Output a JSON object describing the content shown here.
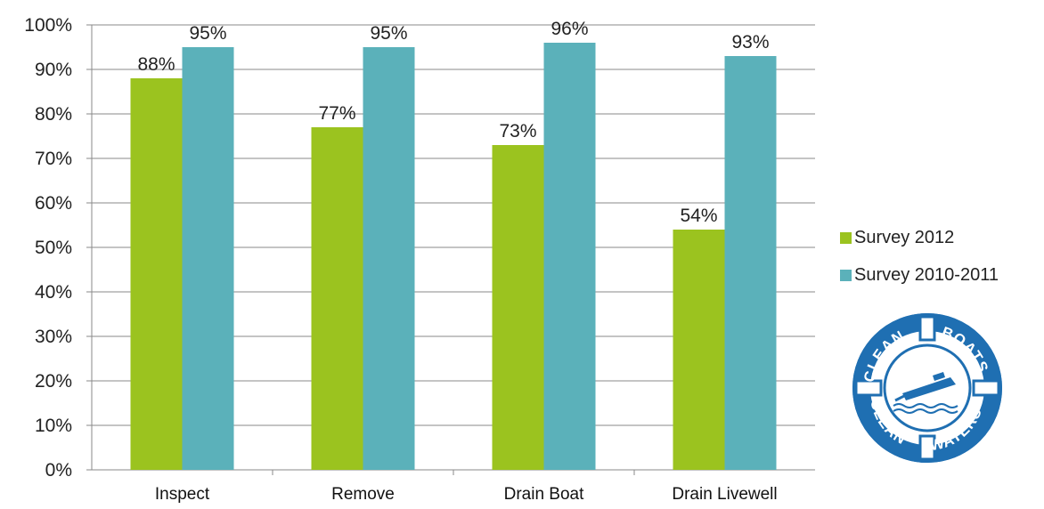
{
  "chart_data": {
    "type": "bar",
    "categories": [
      "Inspect",
      "Remove",
      "Drain Boat",
      "Drain Livewell"
    ],
    "series": [
      {
        "name": "Survey 2012",
        "values": [
          88,
          77,
          73,
          54
        ],
        "color": "#9bc31f"
      },
      {
        "name": "Survey 2010-2011",
        "values": [
          95,
          95,
          96,
          93
        ],
        "color": "#5bb1ba"
      }
    ],
    "ylim": [
      0,
      100
    ],
    "yticks": [
      "0%",
      "10%",
      "20%",
      "30%",
      "40%",
      "50%",
      "60%",
      "70%",
      "80%",
      "90%",
      "100%"
    ],
    "value_suffix": "%",
    "grid": true,
    "legend_position": "right"
  },
  "logo": {
    "name": "clean-boats-clean-waters-logo",
    "text_top_left": "CLEAN",
    "text_top_right": "BOATS",
    "text_bottom_left": "CLEAN",
    "text_bottom_right": "WATERS",
    "color": "#1f6fb2"
  }
}
